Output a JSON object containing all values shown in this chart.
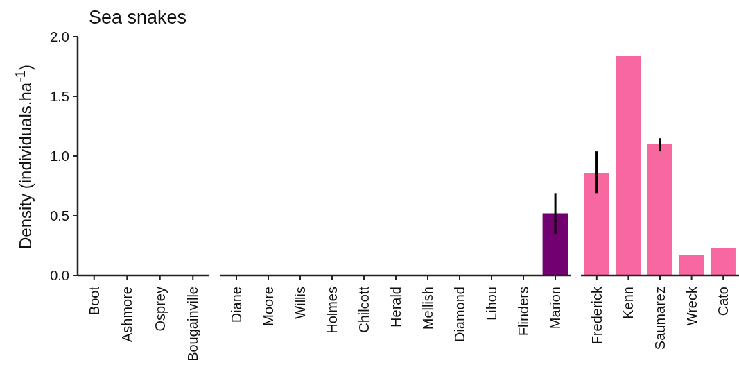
{
  "chart_data": [
    {
      "type": "bar",
      "title": "Sea snakes",
      "ylabel": "Density (individuals.ha$^{-1}$)",
      "categories": [
        "Boot",
        "Ashmore",
        "Osprey",
        "Bougainville"
      ],
      "values": [
        0,
        0,
        0,
        0
      ],
      "color": "#f768a1",
      "ylim": [
        0,
        2
      ],
      "yticks": [
        {
          "value": 0,
          "label": "0.0"
        },
        0.5,
        {
          "value": 1,
          "label": "1.0"
        },
        1.5,
        {
          "value": 2,
          "label": "2.0"
        }
      ]
    },
    {
      "type": "bar",
      "categories": [
        "Diane",
        "Moore",
        "Willis",
        "Holmes",
        "Chilcott",
        "Herald",
        "Mellish",
        "Diamond",
        "Lihou",
        "Flinders",
        "Marion"
      ],
      "values": [
        0,
        0,
        0,
        0,
        0,
        0,
        0,
        0,
        0,
        0,
        0.52
      ],
      "colors": [
        "#f768a1",
        "#f768a1",
        "#f768a1",
        "#f768a1",
        "#f768a1",
        "#f768a1",
        "#f768a1",
        "#f768a1",
        "#f768a1",
        "#f768a1",
        "#730071"
      ],
      "errors": [
        null,
        null,
        null,
        null,
        null,
        null,
        null,
        null,
        null,
        null,
        [
          0.35,
          0.69
        ]
      ],
      "ylim": [
        0,
        2
      ],
      "tick_labels": "x"
    },
    {
      "type": "bar",
      "categories": [
        "Frederick",
        "Kenn",
        "Saumarez",
        "Wreck",
        "Cato"
      ],
      "values": [
        0.86,
        1.84,
        1.1,
        0.17,
        0.23
      ],
      "color": "#f768a1",
      "errors": [
        [
          0.69,
          1.04
        ],
        null,
        [
          1.04,
          1.15
        ],
        null,
        null
      ],
      "ylim": [
        0,
        2
      ],
      "tick_labels": "x"
    }
  ]
}
